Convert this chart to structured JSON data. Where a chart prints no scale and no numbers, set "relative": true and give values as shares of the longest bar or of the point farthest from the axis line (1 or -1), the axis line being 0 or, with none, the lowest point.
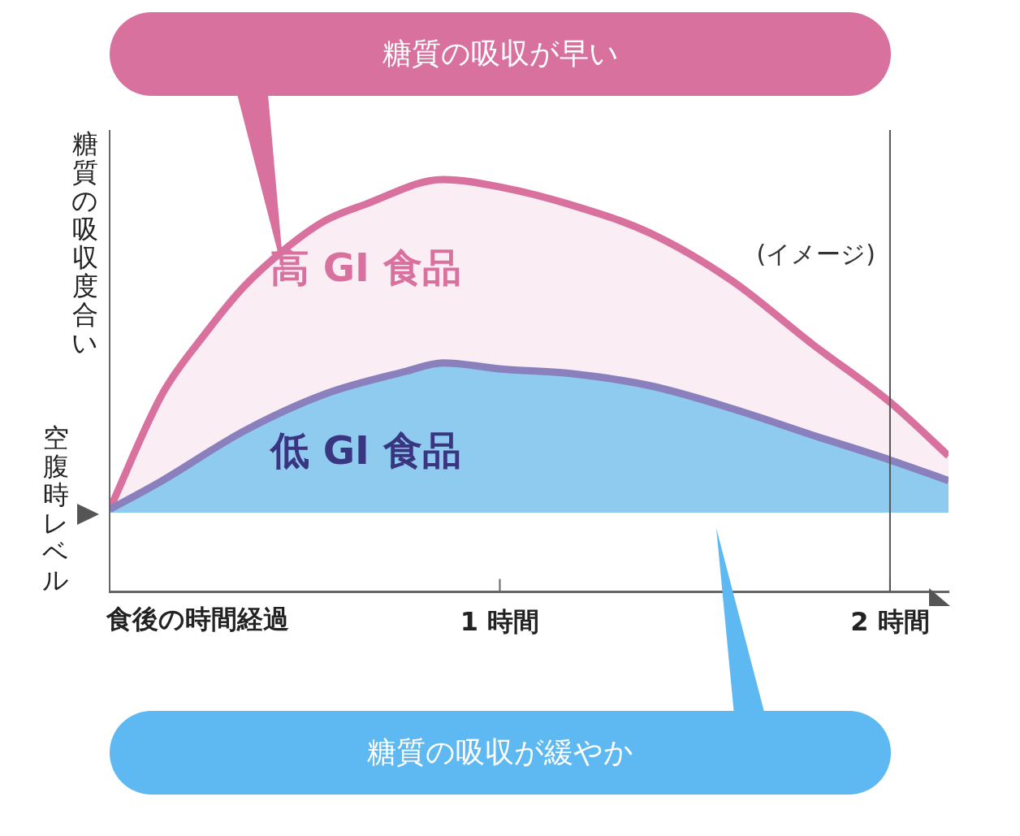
{
  "chart_data": {
    "type": "area",
    "xlabel": "食後の時間経過",
    "ylabel": "糖質の吸収度合い",
    "relative": true,
    "xlim": [
      0,
      2.15
    ],
    "xticks": [
      {
        "value": 1,
        "label": "1 時間"
      },
      {
        "value": 2,
        "label": "2 時間"
      }
    ],
    "grid": false,
    "series": [
      {
        "name": "高 GI 食品",
        "color": "#d9719f",
        "x": [
          0,
          0.135,
          0.24,
          0.344,
          0.448,
          0.552,
          0.656,
          0.854,
          1.01,
          1.177,
          1.385,
          1.594,
          1.802,
          2.0,
          2.15
        ],
        "values": [
          0.2,
          0.48,
          0.62,
          0.74,
          0.83,
          0.9,
          0.94,
          1.0,
          0.98,
          0.94,
          0.87,
          0.755,
          0.6,
          0.46,
          0.33
        ]
      },
      {
        "name": "低 GI 食品",
        "color": "#8a80bd",
        "x": [
          0,
          0.135,
          0.344,
          0.552,
          0.76,
          0.854,
          1.01,
          1.177,
          1.385,
          1.594,
          1.802,
          2.0,
          2.15
        ],
        "values": [
          0.2,
          0.27,
          0.39,
          0.48,
          0.535,
          0.555,
          0.54,
          0.53,
          0.5,
          0.445,
          0.38,
          0.32,
          0.27
        ]
      }
    ],
    "ref_lines": [
      {
        "axis": "y",
        "value": 0.2,
        "label": "空腹時レベル",
        "color": "#8ecbef"
      },
      {
        "axis": "x",
        "value": 2,
        "color": "#555555"
      }
    ],
    "annotations": [
      "糖質の吸収が早い",
      "糖質の吸収が緩やか",
      "(イメージ)"
    ]
  }
}
